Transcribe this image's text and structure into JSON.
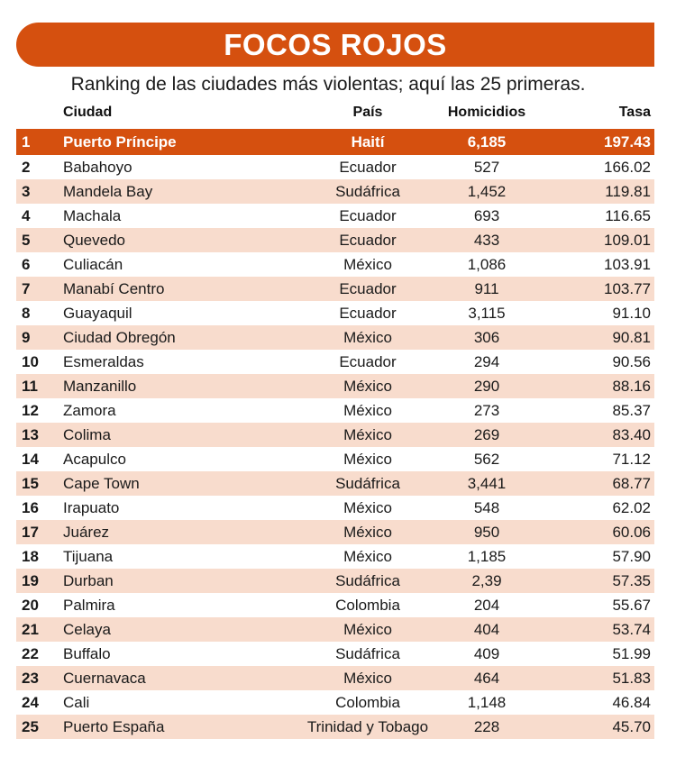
{
  "title": "FOCOS ROJOS",
  "subtitle": "Ranking de las ciudades más violentas; aquí las 25 primeras.",
  "columns": {
    "city": "Ciudad",
    "country": "País",
    "homicides": "Homicidios",
    "rate": "Tasa"
  },
  "colors": {
    "accent": "#d5500f",
    "stripe": "#f8dccd"
  },
  "rows": [
    {
      "rank": "1",
      "city": "Puerto Príncipe",
      "country": "Haití",
      "homicides": "6,185",
      "rate": "197.43"
    },
    {
      "rank": "2",
      "city": "Babahoyo",
      "country": "Ecuador",
      "homicides": "527",
      "rate": "166.02"
    },
    {
      "rank": "3",
      "city": "Mandela Bay",
      "country": "Sudáfrica",
      "homicides": "1,452",
      "rate": "119.81"
    },
    {
      "rank": "4",
      "city": "Machala",
      "country": "Ecuador",
      "homicides": "693",
      "rate": "116.65"
    },
    {
      "rank": "5",
      "city": "Quevedo",
      "country": "Ecuador",
      "homicides": "433",
      "rate": "109.01"
    },
    {
      "rank": "6",
      "city": "Culiacán",
      "country": "México",
      "homicides": "1,086",
      "rate": "103.91"
    },
    {
      "rank": "7",
      "city": "Manabí Centro",
      "country": "Ecuador",
      "homicides": "911",
      "rate": "103.77"
    },
    {
      "rank": "8",
      "city": "Guayaquil",
      "country": "Ecuador",
      "homicides": "3,115",
      "rate": "91.10"
    },
    {
      "rank": "9",
      "city": "Ciudad Obregón",
      "country": "México",
      "homicides": "306",
      "rate": "90.81"
    },
    {
      "rank": "10",
      "city": "Esmeraldas",
      "country": "Ecuador",
      "homicides": "294",
      "rate": "90.56"
    },
    {
      "rank": "11",
      "city": "Manzanillo",
      "country": "México",
      "homicides": "290",
      "rate": "88.16"
    },
    {
      "rank": "12",
      "city": "Zamora",
      "country": "México",
      "homicides": "273",
      "rate": "85.37"
    },
    {
      "rank": "13",
      "city": "Colima",
      "country": "México",
      "homicides": "269",
      "rate": "83.40"
    },
    {
      "rank": "14",
      "city": "Acapulco",
      "country": "México",
      "homicides": "562",
      "rate": "71.12"
    },
    {
      "rank": "15",
      "city": "Cape Town",
      "country": "Sudáfrica",
      "homicides": "3,441",
      "rate": "68.77"
    },
    {
      "rank": "16",
      "city": "Irapuato",
      "country": "México",
      "homicides": "548",
      "rate": "62.02"
    },
    {
      "rank": "17",
      "city": "Juárez",
      "country": "México",
      "homicides": "950",
      "rate": "60.06"
    },
    {
      "rank": "18",
      "city": "Tijuana",
      "country": "México",
      "homicides": "1,185",
      "rate": "57.90"
    },
    {
      "rank": "19",
      "city": "Durban",
      "country": "Sudáfrica",
      "homicides": "2,39",
      "rate": "57.35"
    },
    {
      "rank": "20",
      "city": "Palmira",
      "country": "Colombia",
      "homicides": "204",
      "rate": "55.67"
    },
    {
      "rank": "21",
      "city": "Celaya",
      "country": "México",
      "homicides": "404",
      "rate": "53.74"
    },
    {
      "rank": "22",
      "city": "Buffalo",
      "country": "Sudáfrica",
      "homicides": "409",
      "rate": "51.99"
    },
    {
      "rank": "23",
      "city": "Cuernavaca",
      "country": "México",
      "homicides": "464",
      "rate": "51.83"
    },
    {
      "rank": "24",
      "city": "Cali",
      "country": "Colombia",
      "homicides": "1,148",
      "rate": "46.84"
    },
    {
      "rank": "25",
      "city": "Puerto España",
      "country": "Trinidad y Tobago",
      "homicides": "228",
      "rate": "45.70"
    }
  ]
}
